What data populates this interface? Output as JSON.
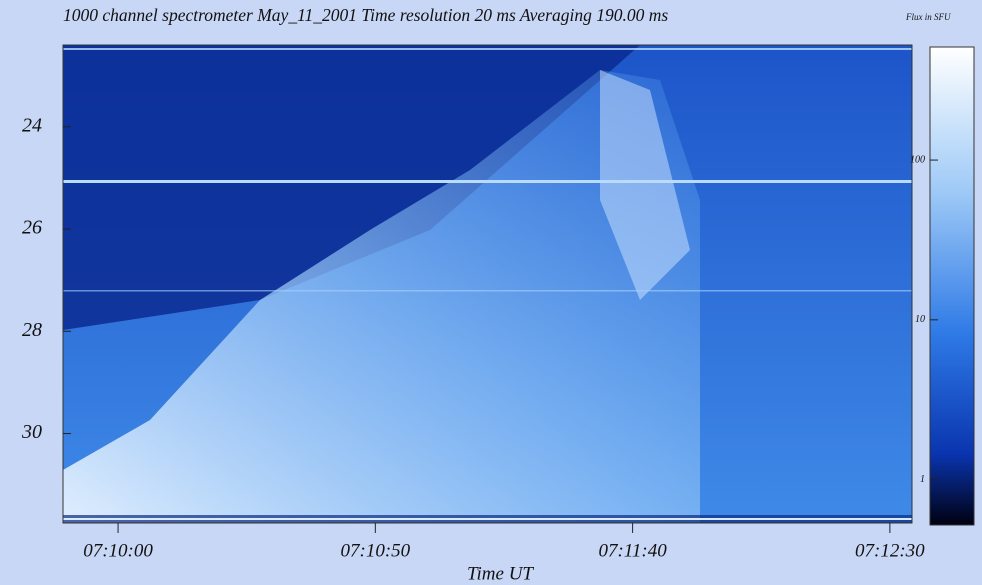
{
  "chart_data": {
    "type": "spectrogram",
    "title": "1000 channel spectrometer  May_11_2001  Time resolution  20 ms    Averaging 190.00 ms",
    "xlabel": "Time UT",
    "colorbar_label": "Flux in SFU",
    "xlim": [
      25789.3,
      25954.3
    ],
    "xticks": [
      {
        "value": 25800,
        "label": "07:10:00"
      },
      {
        "value": 25850,
        "label": "07:10:50"
      },
      {
        "value": 25900,
        "label": "07:11:40"
      },
      {
        "value": 25950,
        "label": "07:12:30"
      }
    ],
    "ylim": [
      22.4,
      31.75
    ],
    "y_inverted": true,
    "yticks": [
      24,
      26,
      28,
      30
    ],
    "clim": [
      0.52,
      510
    ],
    "colorbar_log": true,
    "cticks": [
      1,
      10,
      100
    ]
  }
}
